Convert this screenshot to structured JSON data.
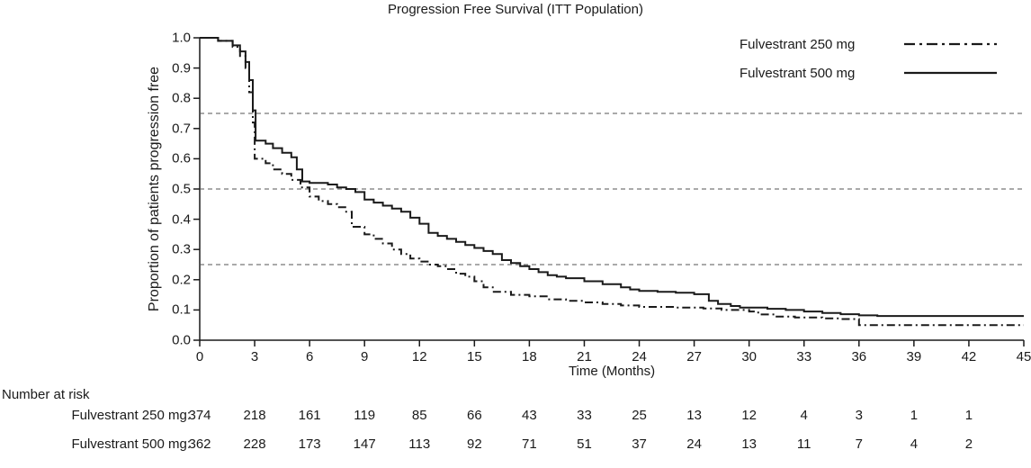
{
  "chart_data": {
    "type": "line",
    "subtype": "kaplan-meier-step",
    "title": "Progression Free Survival (ITT Population)",
    "xlabel": "Time (Months)",
    "ylabel": "Proportion of patients progression free",
    "xlim": [
      0,
      45
    ],
    "ylim": [
      0,
      1
    ],
    "xticks": [
      0,
      3,
      6,
      9,
      12,
      15,
      18,
      21,
      24,
      27,
      30,
      33,
      36,
      39,
      42,
      45
    ],
    "yticks": [
      0,
      0.1,
      0.2,
      0.3,
      0.4,
      0.5,
      0.6,
      0.7,
      0.8,
      0.9,
      1.0
    ],
    "reference_lines_y": [
      0.25,
      0.5,
      0.75
    ],
    "grid": "off",
    "legend_position": "top-right",
    "colors": {
      "line": "#1a1a1a",
      "reference": "#555555",
      "background": "#ffffff"
    },
    "series": [
      {
        "name": "Fulvestrant 250 mg",
        "style": "dashdot",
        "points": [
          [
            0,
            1.0
          ],
          [
            1.0,
            0.99
          ],
          [
            1.8,
            0.97
          ],
          [
            2.2,
            0.94
          ],
          [
            2.5,
            0.9
          ],
          [
            2.7,
            0.82
          ],
          [
            2.9,
            0.72
          ],
          [
            3.0,
            0.6
          ],
          [
            3.6,
            0.585
          ],
          [
            4.0,
            0.565
          ],
          [
            4.5,
            0.55
          ],
          [
            5.0,
            0.53
          ],
          [
            5.5,
            0.505
          ],
          [
            6.0,
            0.475
          ],
          [
            6.5,
            0.46
          ],
          [
            7.0,
            0.45
          ],
          [
            7.5,
            0.44
          ],
          [
            8.0,
            0.425
          ],
          [
            8.3,
            0.375
          ],
          [
            9.0,
            0.35
          ],
          [
            9.5,
            0.335
          ],
          [
            10.0,
            0.32
          ],
          [
            10.5,
            0.3
          ],
          [
            11.0,
            0.285
          ],
          [
            11.5,
            0.27
          ],
          [
            12.0,
            0.26
          ],
          [
            12.5,
            0.25
          ],
          [
            13.0,
            0.245
          ],
          [
            13.5,
            0.235
          ],
          [
            14.0,
            0.22
          ],
          [
            14.5,
            0.21
          ],
          [
            15.0,
            0.195
          ],
          [
            15.5,
            0.175
          ],
          [
            16.0,
            0.16
          ],
          [
            17.0,
            0.15
          ],
          [
            18.0,
            0.145
          ],
          [
            19.0,
            0.135
          ],
          [
            20.0,
            0.13
          ],
          [
            21.0,
            0.125
          ],
          [
            22.0,
            0.12
          ],
          [
            23.0,
            0.115
          ],
          [
            24.0,
            0.11
          ],
          [
            26.0,
            0.108
          ],
          [
            27.5,
            0.105
          ],
          [
            28.5,
            0.1
          ],
          [
            30.0,
            0.095
          ],
          [
            30.5,
            0.085
          ],
          [
            31.5,
            0.078
          ],
          [
            32.5,
            0.075
          ],
          [
            34.0,
            0.072
          ],
          [
            35.0,
            0.07
          ],
          [
            36.0,
            0.05
          ],
          [
            45,
            0.05
          ]
        ]
      },
      {
        "name": "Fulvestrant 500 mg",
        "style": "solid",
        "points": [
          [
            0,
            1.0
          ],
          [
            1.0,
            0.99
          ],
          [
            1.8,
            0.975
          ],
          [
            2.2,
            0.955
          ],
          [
            2.5,
            0.92
          ],
          [
            2.7,
            0.86
          ],
          [
            2.9,
            0.76
          ],
          [
            3.05,
            0.66
          ],
          [
            3.6,
            0.65
          ],
          [
            4.0,
            0.635
          ],
          [
            4.5,
            0.62
          ],
          [
            5.0,
            0.605
          ],
          [
            5.3,
            0.565
          ],
          [
            5.6,
            0.525
          ],
          [
            6.0,
            0.52
          ],
          [
            7.0,
            0.515
          ],
          [
            7.5,
            0.505
          ],
          [
            8.0,
            0.5
          ],
          [
            8.5,
            0.49
          ],
          [
            9.0,
            0.465
          ],
          [
            9.5,
            0.455
          ],
          [
            10.0,
            0.445
          ],
          [
            10.5,
            0.435
          ],
          [
            11.0,
            0.425
          ],
          [
            11.5,
            0.405
          ],
          [
            12.0,
            0.385
          ],
          [
            12.5,
            0.355
          ],
          [
            13.0,
            0.345
          ],
          [
            13.5,
            0.335
          ],
          [
            14.0,
            0.325
          ],
          [
            14.5,
            0.315
          ],
          [
            15.0,
            0.305
          ],
          [
            15.5,
            0.295
          ],
          [
            16.0,
            0.285
          ],
          [
            16.5,
            0.265
          ],
          [
            17.0,
            0.255
          ],
          [
            17.5,
            0.245
          ],
          [
            18.0,
            0.235
          ],
          [
            18.5,
            0.225
          ],
          [
            19.0,
            0.215
          ],
          [
            19.5,
            0.21
          ],
          [
            20.0,
            0.205
          ],
          [
            21.0,
            0.195
          ],
          [
            22.0,
            0.185
          ],
          [
            23.0,
            0.175
          ],
          [
            23.5,
            0.168
          ],
          [
            24.0,
            0.163
          ],
          [
            25.0,
            0.16
          ],
          [
            26.0,
            0.157
          ],
          [
            27.0,
            0.152
          ],
          [
            27.8,
            0.13
          ],
          [
            28.3,
            0.12
          ],
          [
            29.0,
            0.113
          ],
          [
            29.5,
            0.108
          ],
          [
            31.0,
            0.104
          ],
          [
            32.0,
            0.1
          ],
          [
            33.0,
            0.095
          ],
          [
            34.0,
            0.09
          ],
          [
            35.0,
            0.086
          ],
          [
            36.0,
            0.082
          ],
          [
            37.0,
            0.08
          ],
          [
            45,
            0.08
          ]
        ]
      }
    ],
    "number_at_risk": {
      "heading": "Number at risk",
      "times": [
        0,
        3,
        6,
        9,
        12,
        15,
        18,
        21,
        24,
        27,
        30,
        33,
        36,
        39,
        42
      ],
      "rows": [
        {
          "label": "Fulvestrant 250 mg:",
          "values": [
            374,
            218,
            161,
            119,
            85,
            66,
            43,
            33,
            25,
            13,
            12,
            4,
            3,
            1,
            1
          ]
        },
        {
          "label": "Fulvestrant 500 mg:",
          "values": [
            362,
            228,
            173,
            147,
            113,
            92,
            71,
            51,
            37,
            24,
            13,
            11,
            7,
            4,
            2
          ]
        }
      ]
    }
  }
}
